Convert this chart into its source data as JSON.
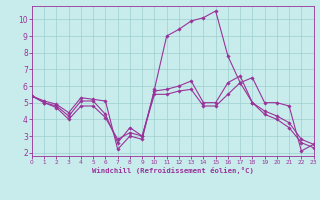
{
  "xlabel": "Windchill (Refroidissement éolien,°C)",
  "bg_color": "#c8ecec",
  "line_color": "#993399",
  "grid_color": "#9ecece",
  "xlim": [
    0,
    23
  ],
  "ylim": [
    1.8,
    10.8
  ],
  "yticks": [
    2,
    3,
    4,
    5,
    6,
    7,
    8,
    9,
    10
  ],
  "xticks": [
    0,
    1,
    2,
    3,
    4,
    5,
    6,
    7,
    8,
    9,
    10,
    11,
    12,
    13,
    14,
    15,
    16,
    17,
    18,
    19,
    20,
    21,
    22,
    23
  ],
  "lines": [
    {
      "x": [
        0,
        1,
        2,
        3,
        4,
        5,
        6,
        7,
        8,
        9,
        10,
        11,
        12,
        13,
        14,
        15,
        16,
        17,
        18,
        19,
        20,
        21,
        22,
        23
      ],
      "y": [
        5.4,
        5.1,
        4.9,
        4.4,
        5.3,
        5.2,
        5.1,
        2.2,
        3.0,
        2.8,
        5.8,
        9.0,
        9.4,
        9.9,
        10.1,
        10.5,
        7.8,
        6.2,
        6.5,
        5.0,
        5.0,
        4.8,
        2.1,
        2.5
      ]
    },
    {
      "x": [
        0,
        1,
        2,
        3,
        4,
        5,
        6,
        7,
        8,
        9,
        10,
        11,
        12,
        13,
        14,
        15,
        16,
        17,
        18,
        19,
        20,
        21,
        22,
        23
      ],
      "y": [
        5.4,
        5.0,
        4.8,
        4.2,
        5.1,
        5.1,
        4.3,
        2.6,
        3.5,
        3.0,
        5.7,
        5.8,
        6.0,
        6.3,
        5.0,
        5.0,
        6.2,
        6.6,
        5.0,
        4.5,
        4.2,
        3.8,
        2.8,
        2.5
      ]
    },
    {
      "x": [
        0,
        1,
        2,
        3,
        4,
        5,
        6,
        7,
        8,
        9,
        10,
        11,
        12,
        13,
        14,
        15,
        16,
        17,
        18,
        19,
        20,
        21,
        22,
        23
      ],
      "y": [
        5.4,
        5.0,
        4.7,
        4.0,
        4.8,
        4.8,
        4.1,
        2.8,
        3.2,
        3.0,
        5.5,
        5.5,
        5.7,
        5.8,
        4.8,
        4.8,
        5.5,
        6.2,
        5.0,
        4.3,
        4.0,
        3.5,
        2.6,
        2.3
      ]
    }
  ]
}
